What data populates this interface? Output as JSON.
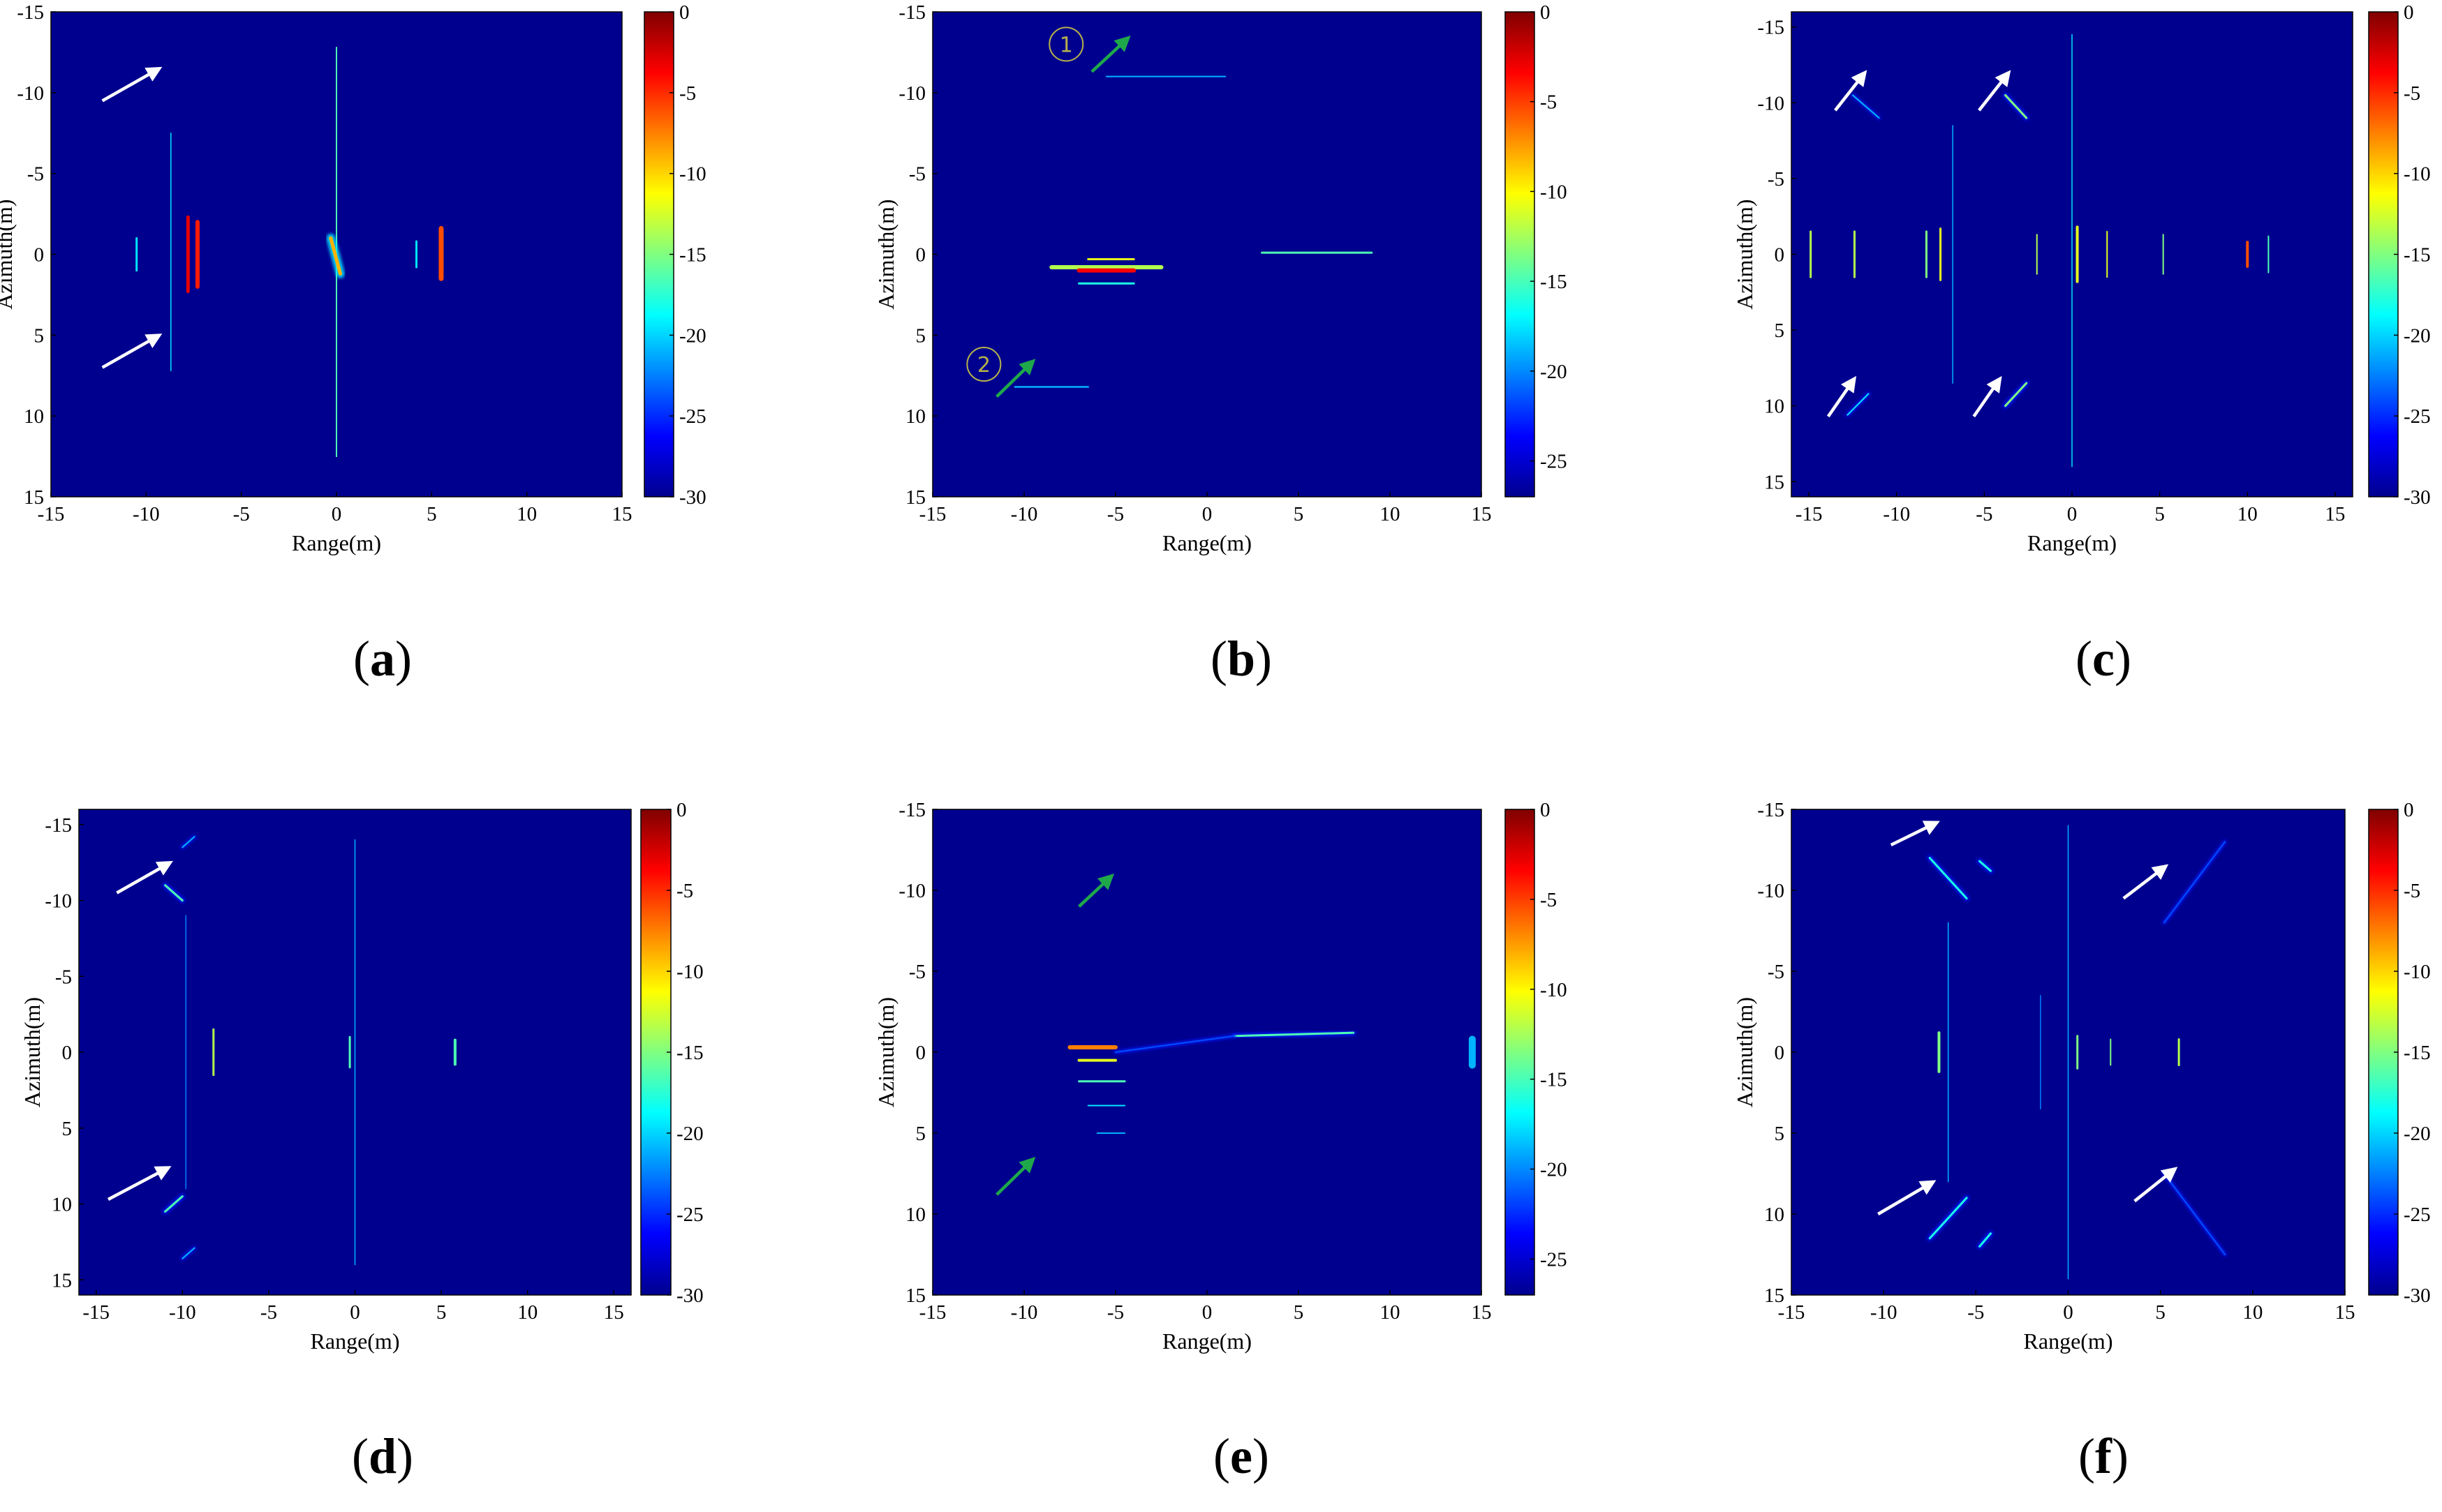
{
  "colors": {
    "background": "#00008f",
    "white_arrow": "#ffffff",
    "green_arrow": "#1fa84a",
    "marker": "#b7b24a",
    "jet": [
      "#00008f",
      "#0000ff",
      "#0080ff",
      "#00ffff",
      "#80ff80",
      "#ffff00",
      "#ff8000",
      "#ff0000",
      "#800000"
    ]
  },
  "chart_data": [
    {
      "id": "a",
      "type": "heatmap",
      "panel_label": "a",
      "xlabel": "Range(m)",
      "ylabel": "Azimuth(m)",
      "xlim": [
        -15,
        15
      ],
      "ylim": [
        -15,
        15
      ],
      "xticks": [
        -15,
        -10,
        -5,
        0,
        5,
        10,
        15
      ],
      "yticks": [
        -15,
        -10,
        -5,
        0,
        5,
        10,
        15
      ],
      "colorbar": {
        "min": -30,
        "max": 0,
        "ticks": [
          0,
          -5,
          -10,
          -15,
          -20,
          -25,
          -30
        ]
      },
      "features": [
        {
          "x1": -8.7,
          "y1": -7.5,
          "x2": -8.7,
          "y2": 7.2,
          "level": 0.35,
          "w": 1.5
        },
        {
          "x1": 0,
          "y1": -12.8,
          "x2": 0,
          "y2": 12.5,
          "level": 0.45,
          "w": 2
        },
        {
          "x1": -7.3,
          "y1": -2,
          "x2": -7.3,
          "y2": 2,
          "level": 0.85,
          "w": 6
        },
        {
          "x1": -7.8,
          "y1": -2.3,
          "x2": -7.8,
          "y2": 2.3,
          "level": 0.9,
          "w": 5
        },
        {
          "x1": -10.5,
          "y1": -1,
          "x2": -10.5,
          "y2": 1,
          "level": 0.35,
          "w": 3
        },
        {
          "x1": -0.3,
          "y1": -1,
          "x2": 0.2,
          "y2": 1.2,
          "level": 0.7,
          "w": 5
        },
        {
          "x1": 5.5,
          "y1": -1.6,
          "x2": 5.5,
          "y2": 1.5,
          "level": 0.8,
          "w": 7
        },
        {
          "x1": 4.2,
          "y1": -0.8,
          "x2": 4.2,
          "y2": 0.8,
          "level": 0.35,
          "w": 3
        }
      ],
      "arrows": [
        {
          "x1": -12.3,
          "y1": -9.5,
          "x2": -9.3,
          "y2": -11.5,
          "color": "white"
        },
        {
          "x1": -12.3,
          "y1": 7,
          "x2": -9.3,
          "y2": 5,
          "color": "white"
        }
      ],
      "markers": []
    },
    {
      "id": "b",
      "type": "heatmap",
      "panel_label": "b",
      "xlabel": "Range(m)",
      "ylabel": "Azimuth(m)",
      "xlim": [
        -15,
        15
      ],
      "ylim": [
        -15,
        15
      ],
      "xticks": [
        -15,
        -10,
        -5,
        0,
        5,
        10,
        15
      ],
      "yticks": [
        -15,
        -10,
        -5,
        0,
        5,
        10,
        15
      ],
      "colorbar": {
        "min": -27,
        "max": 0,
        "ticks": [
          0,
          -5,
          -10,
          -15,
          -20,
          -25
        ]
      },
      "features": [
        {
          "x1": -5.5,
          "y1": -11,
          "x2": 1,
          "y2": -11,
          "level": 0.3,
          "w": 2
        },
        {
          "x1": -10.5,
          "y1": 8.2,
          "x2": -6.5,
          "y2": 8.2,
          "level": 0.3,
          "w": 2.5
        },
        {
          "x1": -8.5,
          "y1": 0.8,
          "x2": -2.5,
          "y2": 0.8,
          "level": 0.55,
          "w": 6
        },
        {
          "x1": -7,
          "y1": 1,
          "x2": -4,
          "y2": 1,
          "level": 0.88,
          "w": 6
        },
        {
          "x1": -6.5,
          "y1": 0.3,
          "x2": -4,
          "y2": 0.3,
          "level": 0.6,
          "w": 3
        },
        {
          "x1": -7,
          "y1": 1.8,
          "x2": -4,
          "y2": 1.8,
          "level": 0.4,
          "w": 3
        },
        {
          "x1": 3,
          "y1": -0.1,
          "x2": 9,
          "y2": -0.1,
          "level": 0.45,
          "w": 3
        }
      ],
      "arrows": [
        {
          "x1": -6.3,
          "y1": -11.3,
          "x2": -4.3,
          "y2": -13.4,
          "color": "green"
        },
        {
          "x1": -11.5,
          "y1": 8.8,
          "x2": -9.5,
          "y2": 6.6,
          "color": "green"
        }
      ],
      "markers": [
        {
          "x": -7.7,
          "y": -13,
          "text": "1"
        },
        {
          "x": -12.2,
          "y": 6.8,
          "text": "2"
        }
      ]
    },
    {
      "id": "c",
      "type": "heatmap",
      "panel_label": "c",
      "xlabel": "Range(m)",
      "ylabel": "Azimuth(m)",
      "xlim": [
        -16,
        16
      ],
      "ylim": [
        -16,
        16
      ],
      "xticks": [
        -15,
        -10,
        -5,
        0,
        5,
        10,
        15
      ],
      "yticks": [
        -15,
        -10,
        -5,
        0,
        5,
        10,
        15
      ],
      "colorbar": {
        "min": -30,
        "max": 0,
        "ticks": [
          0,
          -5,
          -10,
          -15,
          -20,
          -25,
          -30
        ]
      },
      "features": [
        {
          "x1": 0,
          "y1": -14.5,
          "x2": 0,
          "y2": 14,
          "level": 0.35,
          "w": 1.5
        },
        {
          "x1": -6.8,
          "y1": -8.5,
          "x2": -6.8,
          "y2": 8.5,
          "level": 0.3,
          "w": 1.5
        },
        {
          "x1": -14.9,
          "y1": -1.5,
          "x2": -14.9,
          "y2": 1.5,
          "level": 0.55,
          "w": 3
        },
        {
          "x1": -12.4,
          "y1": -1.5,
          "x2": -12.4,
          "y2": 1.5,
          "level": 0.55,
          "w": 3
        },
        {
          "x1": -7.5,
          "y1": -1.7,
          "x2": -7.5,
          "y2": 1.7,
          "level": 0.6,
          "w": 3
        },
        {
          "x1": -8.3,
          "y1": -1.5,
          "x2": -8.3,
          "y2": 1.5,
          "level": 0.5,
          "w": 3
        },
        {
          "x1": -2,
          "y1": -1.3,
          "x2": -2,
          "y2": 1.3,
          "level": 0.55,
          "w": 2
        },
        {
          "x1": 0.3,
          "y1": -1.8,
          "x2": 0.3,
          "y2": 1.8,
          "level": 0.6,
          "w": 4
        },
        {
          "x1": 2,
          "y1": -1.5,
          "x2": 2,
          "y2": 1.5,
          "level": 0.6,
          "w": 2
        },
        {
          "x1": 5.2,
          "y1": -1.3,
          "x2": 5.2,
          "y2": 1.3,
          "level": 0.5,
          "w": 2
        },
        {
          "x1": 10,
          "y1": -0.8,
          "x2": 10,
          "y2": 0.8,
          "level": 0.8,
          "w": 4
        },
        {
          "x1": 11.2,
          "y1": -1.2,
          "x2": 11.2,
          "y2": 1.2,
          "level": 0.45,
          "w": 2
        },
        {
          "x1": -3.8,
          "y1": -10.5,
          "x2": -2.6,
          "y2": -9,
          "level": 0.5,
          "w": 3
        },
        {
          "x1": -3.8,
          "y1": 10,
          "x2": -2.6,
          "y2": 8.5,
          "level": 0.5,
          "w": 3
        },
        {
          "x1": -12.5,
          "y1": -10.5,
          "x2": -11,
          "y2": -9,
          "level": 0.3,
          "w": 2
        },
        {
          "x1": -12.8,
          "y1": 10.6,
          "x2": -11.6,
          "y2": 9.2,
          "level": 0.35,
          "w": 2
        }
      ],
      "arrows": [
        {
          "x1": -13.5,
          "y1": -9.5,
          "x2": -11.8,
          "y2": -12,
          "color": "white"
        },
        {
          "x1": -5.3,
          "y1": -9.5,
          "x2": -3.6,
          "y2": -12,
          "color": "white"
        },
        {
          "x1": -13.9,
          "y1": 10.7,
          "x2": -12.4,
          "y2": 8.2,
          "color": "white"
        },
        {
          "x1": -5.6,
          "y1": 10.7,
          "x2": -4.1,
          "y2": 8.2,
          "color": "white"
        }
      ],
      "markers": []
    },
    {
      "id": "d",
      "type": "heatmap",
      "panel_label": "d",
      "xlabel": "Range(m)",
      "ylabel": "Azimuth(m)",
      "xlim": [
        -16,
        16
      ],
      "ylim": [
        -16,
        16
      ],
      "xticks": [
        -15,
        -10,
        -5,
        0,
        5,
        10,
        15
      ],
      "yticks": [
        -15,
        -10,
        -5,
        0,
        5,
        10,
        15
      ],
      "colorbar": {
        "min": -30,
        "max": 0,
        "ticks": [
          0,
          -5,
          -10,
          -15,
          -20,
          -25,
          -30
        ]
      },
      "features": [
        {
          "x1": 0,
          "y1": -14,
          "x2": 0,
          "y2": 14,
          "level": 0.3,
          "w": 1.5
        },
        {
          "x1": -9.8,
          "y1": -9,
          "x2": -9.8,
          "y2": 9,
          "level": 0.25,
          "w": 1.5
        },
        {
          "x1": -8.2,
          "y1": -1.5,
          "x2": -8.2,
          "y2": 1.5,
          "level": 0.55,
          "w": 3
        },
        {
          "x1": -0.3,
          "y1": -1,
          "x2": -0.3,
          "y2": 1,
          "level": 0.45,
          "w": 3
        },
        {
          "x1": 5.8,
          "y1": -0.8,
          "x2": 5.8,
          "y2": 0.8,
          "level": 0.45,
          "w": 4
        },
        {
          "x1": -11,
          "y1": -11,
          "x2": -10,
          "y2": -10,
          "level": 0.45,
          "w": 3
        },
        {
          "x1": -11,
          "y1": 10.5,
          "x2": -10,
          "y2": 9.5,
          "level": 0.45,
          "w": 3
        },
        {
          "x1": -10,
          "y1": -13.5,
          "x2": -9.3,
          "y2": -14.2,
          "level": 0.3,
          "w": 2
        },
        {
          "x1": -10,
          "y1": 13.6,
          "x2": -9.3,
          "y2": 12.9,
          "level": 0.3,
          "w": 2
        }
      ],
      "arrows": [
        {
          "x1": -13.8,
          "y1": -10.5,
          "x2": -10.7,
          "y2": -12.5,
          "color": "white"
        },
        {
          "x1": -14.3,
          "y1": 9.7,
          "x2": -10.8,
          "y2": 7.6,
          "color": "white"
        }
      ],
      "markers": []
    },
    {
      "id": "e",
      "type": "heatmap",
      "panel_label": "e",
      "xlabel": "Range(m)",
      "ylabel": "Azimuth(m)",
      "xlim": [
        -15,
        15
      ],
      "ylim": [
        -15,
        15
      ],
      "xticks": [
        -15,
        -10,
        -5,
        0,
        5,
        10,
        15
      ],
      "yticks": [
        -15,
        -10,
        -5,
        0,
        5,
        10,
        15
      ],
      "colorbar": {
        "min": -27,
        "max": 0,
        "ticks": [
          0,
          -5,
          -10,
          -15,
          -20,
          -25
        ]
      },
      "features": [
        {
          "x1": -7.5,
          "y1": -0.3,
          "x2": -5,
          "y2": -0.3,
          "level": 0.75,
          "w": 6
        },
        {
          "x1": -7,
          "y1": 0.5,
          "x2": -5,
          "y2": 0.5,
          "level": 0.6,
          "w": 4
        },
        {
          "x1": -7,
          "y1": 1.8,
          "x2": -4.5,
          "y2": 1.8,
          "level": 0.45,
          "w": 3
        },
        {
          "x1": -6.5,
          "y1": 3.3,
          "x2": -4.5,
          "y2": 3.3,
          "level": 0.35,
          "w": 2
        },
        {
          "x1": -6,
          "y1": 5,
          "x2": -4.5,
          "y2": 5,
          "level": 0.3,
          "w": 2
        },
        {
          "x1": 1.5,
          "y1": -1,
          "x2": 8,
          "y2": -1.2,
          "level": 0.45,
          "w": 3
        },
        {
          "x1": -5,
          "y1": 0,
          "x2": 1.5,
          "y2": -1,
          "level": 0.2,
          "w": 2
        },
        {
          "x1": 14.5,
          "y1": -0.8,
          "x2": 14.5,
          "y2": 0.8,
          "level": 0.3,
          "w": 10
        }
      ],
      "arrows": [
        {
          "x1": -7,
          "y1": -9,
          "x2": -5.2,
          "y2": -10.9,
          "color": "green"
        },
        {
          "x1": -11.5,
          "y1": 8.8,
          "x2": -9.5,
          "y2": 6.6,
          "color": "green"
        }
      ],
      "markers": []
    },
    {
      "id": "f",
      "type": "heatmap",
      "panel_label": "f",
      "xlabel": "Range(m)",
      "ylabel": "Azimuth(m)",
      "xlim": [
        -15,
        15
      ],
      "ylim": [
        -15,
        15
      ],
      "xticks": [
        -15,
        -10,
        -5,
        0,
        5,
        10,
        15
      ],
      "yticks": [
        -15,
        -10,
        -5,
        0,
        5,
        10,
        15
      ],
      "colorbar": {
        "min": -30,
        "max": 0,
        "ticks": [
          0,
          -5,
          -10,
          -15,
          -20,
          -25,
          -30
        ]
      },
      "features": [
        {
          "x1": 0,
          "y1": -14,
          "x2": 0,
          "y2": 14,
          "level": 0.3,
          "w": 1.5
        },
        {
          "x1": -6.5,
          "y1": -8,
          "x2": -6.5,
          "y2": 8,
          "level": 0.3,
          "w": 1.5
        },
        {
          "x1": -1.5,
          "y1": -3.5,
          "x2": -1.5,
          "y2": 3.5,
          "level": 0.25,
          "w": 1.5
        },
        {
          "x1": -7.5,
          "y1": -12,
          "x2": -5.5,
          "y2": -9.5,
          "level": 0.4,
          "w": 3
        },
        {
          "x1": -4.8,
          "y1": -11.8,
          "x2": -4.2,
          "y2": -11.2,
          "level": 0.4,
          "w": 3
        },
        {
          "x1": -7.5,
          "y1": 11.5,
          "x2": -5.5,
          "y2": 9,
          "level": 0.4,
          "w": 3
        },
        {
          "x1": -4.8,
          "y1": 12,
          "x2": -4.2,
          "y2": 11.2,
          "level": 0.4,
          "w": 3
        },
        {
          "x1": 5.2,
          "y1": -8,
          "x2": 8.5,
          "y2": -13,
          "level": 0.2,
          "w": 2
        },
        {
          "x1": 5.2,
          "y1": 7.5,
          "x2": 8.5,
          "y2": 12.5,
          "level": 0.2,
          "w": 2
        },
        {
          "x1": -7,
          "y1": -1.2,
          "x2": -7,
          "y2": 1.2,
          "level": 0.5,
          "w": 4
        },
        {
          "x1": 0.5,
          "y1": -1,
          "x2": 0.5,
          "y2": 1,
          "level": 0.5,
          "w": 3
        },
        {
          "x1": 2.3,
          "y1": -0.8,
          "x2": 2.3,
          "y2": 0.8,
          "level": 0.5,
          "w": 2
        },
        {
          "x1": 6,
          "y1": -0.8,
          "x2": 6,
          "y2": 0.8,
          "level": 0.55,
          "w": 3
        }
      ],
      "arrows": [
        {
          "x1": -9.6,
          "y1": -12.8,
          "x2": -7.1,
          "y2": -14.2,
          "color": "white"
        },
        {
          "x1": 3,
          "y1": -9.5,
          "x2": 5.3,
          "y2": -11.5,
          "color": "white"
        },
        {
          "x1": -10.3,
          "y1": 10,
          "x2": -7.3,
          "y2": 8,
          "color": "white"
        },
        {
          "x1": 3.6,
          "y1": 9.2,
          "x2": 5.8,
          "y2": 7.2,
          "color": "white"
        }
      ],
      "markers": []
    }
  ]
}
